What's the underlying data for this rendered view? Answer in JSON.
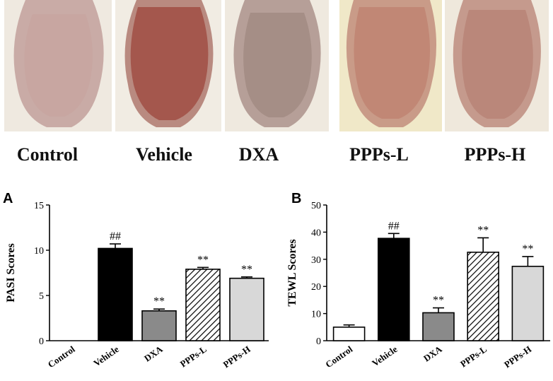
{
  "photos": {
    "groups": [
      "Control",
      "Vehicle",
      "DXA",
      "PPPs-L",
      "PPPs-H"
    ],
    "tones": [
      {
        "base": "#c9aba6",
        "lesion": "#c7a29c",
        "fur": "#efe9e0"
      },
      {
        "base": "#b98a80",
        "lesion": "#a4574d",
        "fur": "#f1ece3"
      },
      {
        "base": "#b69f98",
        "lesion": "#9e877f",
        "fur": "#efe9df"
      },
      {
        "base": "#c99b88",
        "lesion": "#bd7f6e",
        "fur": "#f0e8c8"
      },
      {
        "base": "#c59a8d",
        "lesion": "#b57f72",
        "fur": "#efe8dc"
      }
    ]
  },
  "chart_data": [
    {
      "panel": "A",
      "type": "bar",
      "categories": [
        "Control",
        "Vehicle",
        "DXA",
        "PPPs-L",
        "PPPs-H"
      ],
      "values": [
        0,
        10.2,
        3.3,
        7.9,
        6.9
      ],
      "errors": [
        0,
        0.5,
        0.2,
        0.2,
        0.15
      ],
      "annotations": [
        "",
        "##",
        "**",
        "**",
        "**"
      ],
      "ylabel": "PASI Scores",
      "ylim": [
        0,
        15
      ],
      "yticks": [
        "0",
        "5",
        "10",
        "15"
      ],
      "bar_styles": [
        "white",
        "black",
        "gray",
        "hatch",
        "light"
      ]
    },
    {
      "panel": "B",
      "type": "bar",
      "categories": [
        "Control",
        "Vehicle",
        "DXA",
        "PPPs-L",
        "PPPs-H"
      ],
      "values": [
        5,
        37.7,
        10.3,
        32.6,
        27.4
      ],
      "errors": [
        0.8,
        1.8,
        1.8,
        5.3,
        3.6
      ],
      "annotations": [
        "",
        "##",
        "**",
        "**",
        "**"
      ],
      "ylabel": "TEWL Scores",
      "ylim": [
        0,
        50
      ],
      "yticks": [
        "0",
        "10",
        "20",
        "30",
        "40",
        "50"
      ],
      "bar_styles": [
        "white",
        "black",
        "gray",
        "hatch",
        "light"
      ]
    }
  ],
  "colors": {
    "black": "#000000",
    "gray": "#8a8a8a",
    "light": "#d8d8d8",
    "white": "#ffffff",
    "axis": "#000000"
  }
}
